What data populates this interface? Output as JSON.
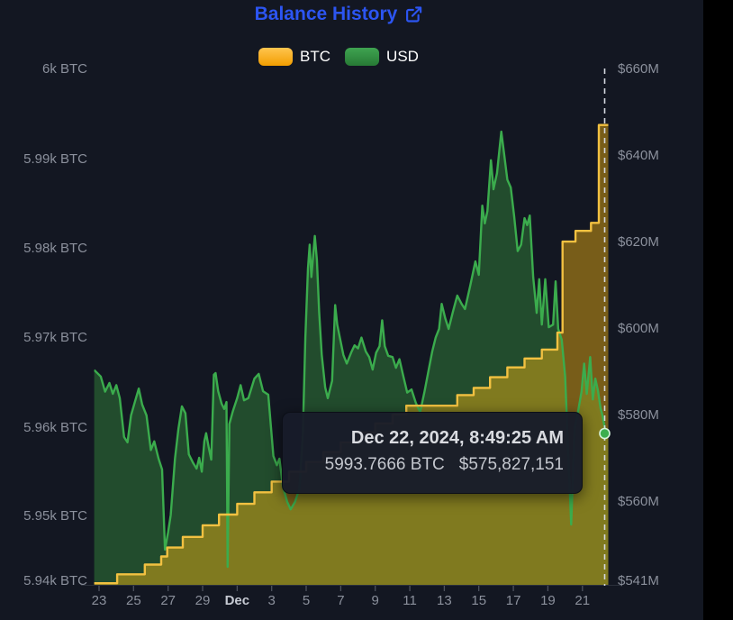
{
  "title": {
    "text": "Balance History"
  },
  "legend": [
    {
      "label": "BTC",
      "color": "#f5a623"
    },
    {
      "label": "USD",
      "color": "#2e8b3d"
    }
  ],
  "tooltip": {
    "date": "Dec 22, 2024, 8:49:25 AM",
    "btc_value": "5993.7666 BTC",
    "usd_value": "$575,827,151"
  },
  "axes": {
    "left_labels": [
      "6k BTC",
      "5.99k BTC",
      "5.98k BTC",
      "5.97k BTC",
      "5.96k BTC",
      "5.95k BTC",
      "5.94k BTC"
    ],
    "right_labels": [
      "$660M",
      "$640M",
      "$620M",
      "$600M",
      "$580M",
      "$560M",
      "$541M"
    ],
    "x_labels": [
      "23",
      "25",
      "27",
      "29",
      "Dec",
      "3",
      "5",
      "7",
      "9",
      "11",
      "13",
      "15",
      "17",
      "19",
      "21"
    ],
    "x_bold_label": "Dec"
  },
  "chart_data": {
    "type": "area",
    "x_unit": "days since Nov 23, 2024 (x labels every 2 days; Dec = Dec 1)",
    "left_axis": {
      "title": "BTC balance",
      "min": 5941.5,
      "max": 6000,
      "tick_values": [
        6000,
        5990,
        5980,
        5970,
        5960,
        5950,
        5940
      ]
    },
    "right_axis": {
      "title": "USD value (millions)",
      "min": 541,
      "max": 660,
      "tick_values": [
        660,
        640,
        620,
        600,
        580,
        560,
        541
      ]
    },
    "crosshair_day": 29.29,
    "hover_point": {
      "day": 29.29,
      "usd_m": 575.827,
      "btc": 5993.7666
    },
    "series": [
      {
        "name": "BTC",
        "style": "step-after",
        "axis": "left",
        "line_color": "#f2c141",
        "fill_color": "rgba(244,180,16,0.45)",
        "points": [
          [
            -0.28,
            5942.4
          ],
          [
            1.05,
            5943.4
          ],
          [
            2.65,
            5944.5
          ],
          [
            3.6,
            5945.4
          ],
          [
            3.95,
            5946.4
          ],
          [
            4.85,
            5947.6
          ],
          [
            6.0,
            5948.9
          ],
          [
            6.95,
            5950.1
          ],
          [
            8.0,
            5951.3
          ],
          [
            9.0,
            5952.6
          ],
          [
            10.0,
            5953.8
          ],
          [
            11.0,
            5954.9
          ],
          [
            12.0,
            5956.0
          ],
          [
            13.0,
            5957.1
          ],
          [
            14.0,
            5958.2
          ],
          [
            15.0,
            5959.3
          ],
          [
            16.0,
            5960.3
          ],
          [
            17.0,
            5961.3
          ],
          [
            17.8,
            5962.3
          ],
          [
            20.75,
            5963.5
          ],
          [
            21.7,
            5964.3
          ],
          [
            22.65,
            5965.5
          ],
          [
            23.65,
            5966.6
          ],
          [
            24.65,
            5967.6
          ],
          [
            25.65,
            5968.6
          ],
          [
            26.55,
            5970.5
          ],
          [
            26.85,
            5980.7
          ],
          [
            27.6,
            5981.9
          ],
          [
            28.5,
            5982.8
          ],
          [
            28.95,
            5993.7666
          ]
        ],
        "end_day": 29.5
      },
      {
        "name": "USD",
        "style": "line",
        "axis": "right",
        "line_color": "#3bac4d",
        "fill_color": "rgba(47,125,56,0.52)",
        "points": [
          [
            -0.28,
            590.5
          ],
          [
            0.1,
            589
          ],
          [
            0.35,
            585.5
          ],
          [
            0.6,
            587.5
          ],
          [
            0.8,
            585
          ],
          [
            1.0,
            587
          ],
          [
            1.2,
            584
          ],
          [
            1.45,
            575
          ],
          [
            1.65,
            573.8
          ],
          [
            1.85,
            580
          ],
          [
            2.1,
            583.5
          ],
          [
            2.3,
            586.2
          ],
          [
            2.5,
            582.5
          ],
          [
            2.75,
            580
          ],
          [
            3.0,
            572
          ],
          [
            3.2,
            574
          ],
          [
            3.45,
            570
          ],
          [
            3.65,
            567.5
          ],
          [
            3.82,
            549
          ],
          [
            4.0,
            553
          ],
          [
            4.15,
            557
          ],
          [
            4.4,
            570
          ],
          [
            4.6,
            577
          ],
          [
            4.8,
            582.1
          ],
          [
            5.0,
            580.5
          ],
          [
            5.2,
            571
          ],
          [
            5.45,
            569
          ],
          [
            5.65,
            567.7
          ],
          [
            5.8,
            570.2
          ],
          [
            5.95,
            567
          ],
          [
            6.1,
            574
          ],
          [
            6.2,
            575.9
          ],
          [
            6.35,
            572.7
          ],
          [
            6.5,
            569.8
          ],
          [
            6.65,
            589.4
          ],
          [
            6.75,
            589.8
          ],
          [
            6.9,
            585.6
          ],
          [
            7.1,
            582.7
          ],
          [
            7.25,
            581.5
          ],
          [
            7.38,
            583.1
          ],
          [
            7.45,
            545
          ],
          [
            7.55,
            578
          ],
          [
            7.75,
            581
          ],
          [
            8.0,
            584
          ],
          [
            8.2,
            587
          ],
          [
            8.4,
            583.5
          ],
          [
            8.65,
            584
          ],
          [
            9.0,
            588.5
          ],
          [
            9.25,
            589.6
          ],
          [
            9.5,
            585.6
          ],
          [
            9.8,
            584.8
          ],
          [
            10.1,
            570.6
          ],
          [
            10.3,
            568.5
          ],
          [
            10.45,
            570
          ],
          [
            10.65,
            563.5
          ],
          [
            10.9,
            560
          ],
          [
            11.1,
            558.3
          ],
          [
            11.35,
            560
          ],
          [
            11.6,
            563
          ],
          [
            11.8,
            575
          ],
          [
            11.95,
            598
          ],
          [
            12.1,
            614
          ],
          [
            12.2,
            619.5
          ],
          [
            12.3,
            612
          ],
          [
            12.5,
            621.5
          ],
          [
            12.62,
            616
          ],
          [
            12.75,
            604
          ],
          [
            12.9,
            594
          ],
          [
            13.1,
            586.5
          ],
          [
            13.25,
            584
          ],
          [
            13.5,
            588
          ],
          [
            13.68,
            605.5
          ],
          [
            13.8,
            601
          ],
          [
            13.95,
            598
          ],
          [
            14.15,
            594
          ],
          [
            14.35,
            592
          ],
          [
            14.6,
            594.5
          ],
          [
            14.8,
            596.2
          ],
          [
            15.0,
            595.5
          ],
          [
            15.2,
            598
          ],
          [
            15.45,
            594.8
          ],
          [
            15.65,
            593.5
          ],
          [
            15.85,
            590.6
          ],
          [
            16.05,
            594.5
          ],
          [
            16.25,
            596
          ],
          [
            16.4,
            602
          ],
          [
            16.55,
            596
          ],
          [
            16.75,
            593.8
          ],
          [
            17.0,
            593.5
          ],
          [
            17.2,
            591
          ],
          [
            17.4,
            593
          ],
          [
            17.6,
            589.5
          ],
          [
            17.85,
            585.3
          ],
          [
            18.1,
            586
          ],
          [
            18.35,
            582.9
          ],
          [
            18.6,
            580.8
          ],
          [
            18.85,
            585.5
          ],
          [
            19.1,
            590.6
          ],
          [
            19.3,
            594.8
          ],
          [
            19.5,
            598
          ],
          [
            19.7,
            600
          ],
          [
            19.85,
            605.8
          ],
          [
            20.05,
            602.5
          ],
          [
            20.25,
            600
          ],
          [
            20.5,
            604
          ],
          [
            20.75,
            607.7
          ],
          [
            21.0,
            605.8
          ],
          [
            21.2,
            604.6
          ],
          [
            21.5,
            610
          ],
          [
            21.8,
            615.6
          ],
          [
            22.0,
            612.5
          ],
          [
            22.2,
            628.5
          ],
          [
            22.35,
            624.4
          ],
          [
            22.5,
            627.3
          ],
          [
            22.7,
            639
          ],
          [
            22.85,
            632.3
          ],
          [
            23.05,
            636
          ],
          [
            23.3,
            645.6
          ],
          [
            23.45,
            641
          ],
          [
            23.65,
            634.5
          ],
          [
            23.85,
            632.7
          ],
          [
            24.05,
            626
          ],
          [
            24.25,
            618
          ],
          [
            24.45,
            619.5
          ],
          [
            24.65,
            625.6
          ],
          [
            24.8,
            624
          ],
          [
            24.95,
            626.2
          ],
          [
            25.15,
            612
          ],
          [
            25.35,
            603.7
          ],
          [
            25.5,
            611.5
          ],
          [
            25.65,
            601
          ],
          [
            25.85,
            611.5
          ],
          [
            26.05,
            600.4
          ],
          [
            26.3,
            601
          ],
          [
            26.45,
            611
          ],
          [
            26.6,
            600
          ],
          [
            26.8,
            597.5
          ],
          [
            27.0,
            589
          ],
          [
            27.35,
            554.8
          ],
          [
            27.55,
            577
          ],
          [
            27.75,
            581
          ],
          [
            27.95,
            585.5
          ],
          [
            28.1,
            592
          ],
          [
            28.25,
            585
          ],
          [
            28.45,
            593.5
          ],
          [
            28.6,
            583.7
          ],
          [
            28.75,
            588.5
          ],
          [
            28.9,
            585.8
          ],
          [
            29.05,
            581.7
          ],
          [
            29.15,
            580.2
          ],
          [
            29.28,
            577.5
          ],
          [
            29.37,
            575.827
          ],
          [
            29.5,
            575.3
          ]
        ],
        "end_day": 29.5
      }
    ]
  }
}
